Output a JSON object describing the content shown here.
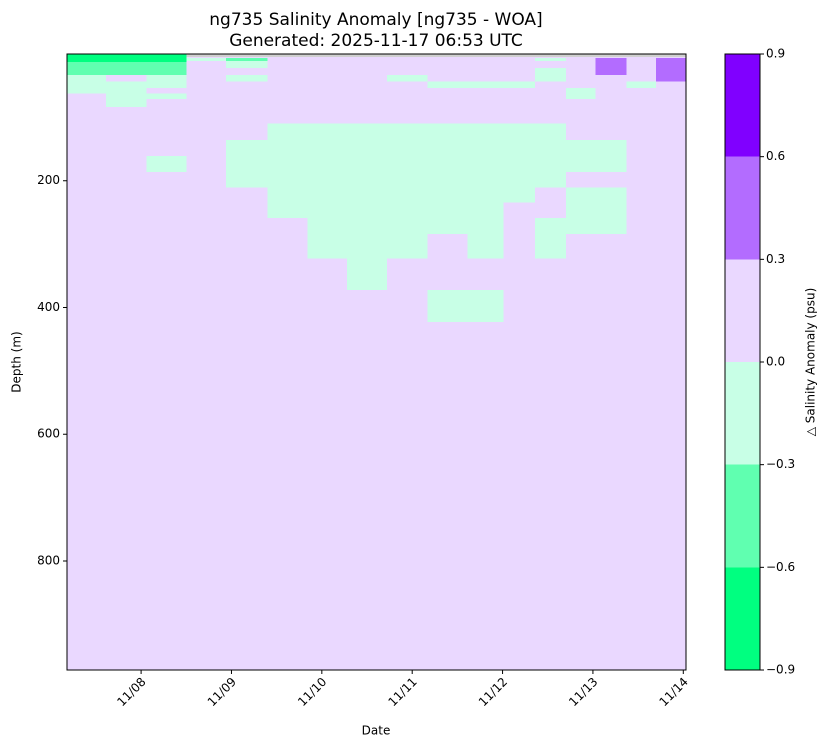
{
  "chart_data": {
    "type": "heatmap",
    "title": "ng735 Salinity Anomaly [ng735 - WOA]",
    "subtitle": "Generated: 2025-11-17 06:53 UTC",
    "x_label": "Date",
    "y_label": "Depth (m)",
    "colorbar_label": "△ Salinity Anomaly (psu)",
    "xlim": [
      7.18,
      14.03
    ],
    "xticks": [
      {
        "value": 8,
        "label": "11/08"
      },
      {
        "value": 9,
        "label": "11/09"
      },
      {
        "value": 10,
        "label": "11/10"
      },
      {
        "value": 11,
        "label": "11/11"
      },
      {
        "value": 12,
        "label": "11/12"
      },
      {
        "value": 13,
        "label": "11/13"
      },
      {
        "value": 14,
        "label": "11/14"
      }
    ],
    "ylim": [
      972,
      0
    ],
    "yticks": [
      200,
      400,
      600,
      800
    ],
    "levels": [
      -0.9,
      -0.6,
      -0.3,
      0,
      0.3,
      0.6,
      0.9
    ],
    "colors": [
      "#00ff80",
      "#60ffb0",
      "#c8ffe6",
      "#ead8ff",
      "#b36cff",
      "#8000ff"
    ],
    "nan_color": "#d0d0d0",
    "colorbar_ticks": [
      {
        "value": -0.9,
        "label": "−0.9"
      },
      {
        "value": -0.6,
        "label": "−0.6"
      },
      {
        "value": -0.3,
        "label": "−0.3"
      },
      {
        "value": 0,
        "label": "0.0"
      },
      0.3,
      0.6,
      0.9
    ],
    "cells": [
      {
        "x": [
          7.18,
          14.03
        ],
        "y": [
          0,
          972
        ],
        "value": 0.15
      },
      {
        "x": [
          8.5,
          14.03
        ],
        "y": [
          0,
          5
        ],
        "value": null
      },
      {
        "x": [
          7.18,
          8.5
        ],
        "y": [
          0,
          13
        ],
        "value": -0.75
      },
      {
        "x": [
          7.18,
          8.5
        ],
        "y": [
          13,
          33
        ],
        "value": -0.45
      },
      {
        "x": [
          7.18,
          7.61
        ],
        "y": [
          33,
          62
        ],
        "value": -0.15
      },
      {
        "x": [
          7.61,
          8.06
        ],
        "y": [
          43,
          84
        ],
        "value": -0.15
      },
      {
        "x": [
          8.06,
          8.5
        ],
        "y": [
          33,
          54
        ],
        "value": -0.15
      },
      {
        "x": [
          8.06,
          8.5
        ],
        "y": [
          62,
          71
        ],
        "value": -0.15
      },
      {
        "x": [
          8.06,
          8.5
        ],
        "y": [
          161,
          186
        ],
        "value": -0.15
      },
      {
        "x": [
          8.5,
          8.94
        ],
        "y": [
          6,
          11
        ],
        "value": -0.15
      },
      {
        "x": [
          8.94,
          9.4
        ],
        "y": [
          6,
          11
        ],
        "value": -0.45
      },
      {
        "x": [
          8.94,
          9.4
        ],
        "y": [
          11,
          22
        ],
        "value": -0.15
      },
      {
        "x": [
          8.94,
          9.4
        ],
        "y": [
          33,
          43
        ],
        "value": -0.15
      },
      {
        "x": [
          8.94,
          9.4
        ],
        "y": [
          136,
          211
        ],
        "value": -0.15
      },
      {
        "x": [
          9.4,
          9.84
        ],
        "y": [
          110,
          259
        ],
        "value": -0.15
      },
      {
        "x": [
          9.84,
          10.28
        ],
        "y": [
          110,
          323
        ],
        "value": -0.15
      },
      {
        "x": [
          10.28,
          10.72
        ],
        "y": [
          110,
          372
        ],
        "value": -0.15
      },
      {
        "x": [
          10.72,
          11.17
        ],
        "y": [
          110,
          323
        ],
        "value": -0.15
      },
      {
        "x": [
          11.17,
          11.61
        ],
        "y": [
          110,
          284
        ],
        "value": -0.15
      },
      {
        "x": [
          11.61,
          12.01
        ],
        "y": [
          110,
          323
        ],
        "value": -0.15
      },
      {
        "x": [
          12.01,
          12.36
        ],
        "y": [
          110,
          234
        ],
        "value": -0.15
      },
      {
        "x": [
          12.36,
          12.7
        ],
        "y": [
          110,
          211
        ],
        "value": -0.15
      },
      {
        "x": [
          12.36,
          12.7
        ],
        "y": [
          259,
          323
        ],
        "value": -0.15
      },
      {
        "x": [
          12.7,
          13.03
        ],
        "y": [
          136,
          186
        ],
        "value": -0.15
      },
      {
        "x": [
          12.7,
          13.03
        ],
        "y": [
          211,
          284
        ],
        "value": -0.15
      },
      {
        "x": [
          13.03,
          13.37
        ],
        "y": [
          136,
          186
        ],
        "value": -0.15
      },
      {
        "x": [
          13.03,
          13.37
        ],
        "y": [
          211,
          284
        ],
        "value": -0.15
      },
      {
        "x": [
          11.17,
          12.01
        ],
        "y": [
          372,
          423
        ],
        "value": -0.15
      },
      {
        "x": [
          10.72,
          11.17
        ],
        "y": [
          33,
          43
        ],
        "value": -0.15
      },
      {
        "x": [
          11.17,
          12.36
        ],
        "y": [
          43,
          54
        ],
        "value": -0.15
      },
      {
        "x": [
          12.36,
          12.7
        ],
        "y": [
          6,
          11
        ],
        "value": -0.15
      },
      {
        "x": [
          12.36,
          12.7
        ],
        "y": [
          22,
          43
        ],
        "value": -0.15
      },
      {
        "x": [
          12.7,
          13.03
        ],
        "y": [
          54,
          71
        ],
        "value": -0.15
      },
      {
        "x": [
          13.03,
          13.37
        ],
        "y": [
          6,
          33
        ],
        "value": 0.45
      },
      {
        "x": [
          13.37,
          13.7
        ],
        "y": [
          43,
          54
        ],
        "value": -0.15
      },
      {
        "x": [
          13.7,
          14.03
        ],
        "y": [
          6,
          43
        ],
        "value": 0.45
      }
    ]
  }
}
